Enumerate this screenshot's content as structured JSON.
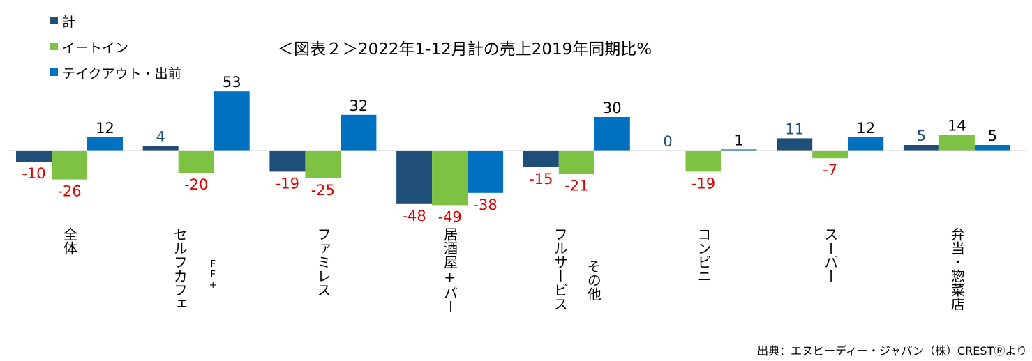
{
  "chart_data": {
    "type": "bar",
    "title": "＜図表２＞2022年1-12月計の売上2019年同期比%",
    "categories": [
      {
        "lines": [
          "全体"
        ]
      },
      {
        "lines": [
          "セルフカフェ",
          "FF+"
        ]
      },
      {
        "lines": [
          "ファミレス"
        ]
      },
      {
        "lines": [
          "居酒屋+バー"
        ]
      },
      {
        "lines": [
          "フルサービス",
          "その他"
        ]
      },
      {
        "lines": [
          "コンビニ"
        ]
      },
      {
        "lines": [
          "スーパー"
        ]
      },
      {
        "lines": [
          "弁当・惣菜店"
        ]
      }
    ],
    "series": [
      {
        "name": "計",
        "color": "#1F4E79",
        "values": [
          -10,
          4,
          -19,
          -48,
          -15,
          0,
          11,
          5
        ]
      },
      {
        "name": "イートイン",
        "color": "#7DC242",
        "values": [
          -26,
          -20,
          -25,
          -49,
          -21,
          -19,
          -7,
          14
        ]
      },
      {
        "name": "テイクアウト・出前",
        "color": "#0070C0",
        "values": [
          12,
          53,
          32,
          -38,
          30,
          1,
          12,
          5
        ]
      }
    ],
    "negative_label_color": "#E00000",
    "positive_label_colors": [
      "#1F4E79",
      "#000000",
      "#000000"
    ],
    "ylim": [
      -50,
      55
    ],
    "grid": false,
    "legend_position": "top-left",
    "source": "出典：エヌピーディー・ジャパン（株）CRESTⓇより"
  }
}
